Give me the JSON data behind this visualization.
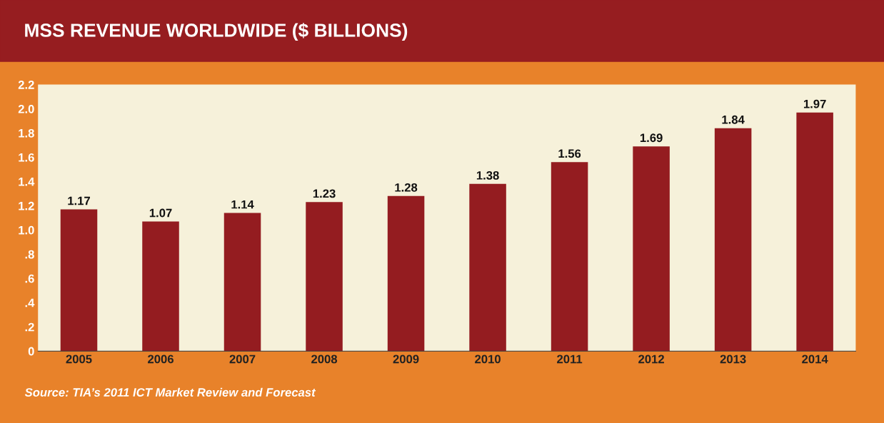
{
  "chart_data": {
    "type": "bar",
    "title": "MSS REVENUE WORLDWIDE ($ BILLIONS)",
    "categories": [
      "2005",
      "2006",
      "2007",
      "2008",
      "2009",
      "2010",
      "2011",
      "2012",
      "2013",
      "2014"
    ],
    "values": [
      1.17,
      1.07,
      1.14,
      1.23,
      1.28,
      1.38,
      1.56,
      1.69,
      1.84,
      1.97
    ],
    "color": "#941c20",
    "data_labels": true,
    "ylim": [
      0,
      2.2
    ],
    "yticks": [
      0,
      {
        "value": 0.2,
        "label": ".2"
      },
      {
        "value": 0.4,
        "label": ".4"
      },
      {
        "value": 0.6,
        "label": ".6"
      },
      {
        "value": 0.8,
        "label": ".8"
      },
      {
        "value": 1.0,
        "label": "1.0"
      },
      1.2,
      1.4,
      1.6,
      1.8,
      {
        "value": 2.0,
        "label": "2.0"
      },
      2.2
    ],
    "grid": false,
    "legend": false,
    "annotations": [
      "Source: TIA’s 2011 ICT Market Review and Forecast"
    ]
  }
}
